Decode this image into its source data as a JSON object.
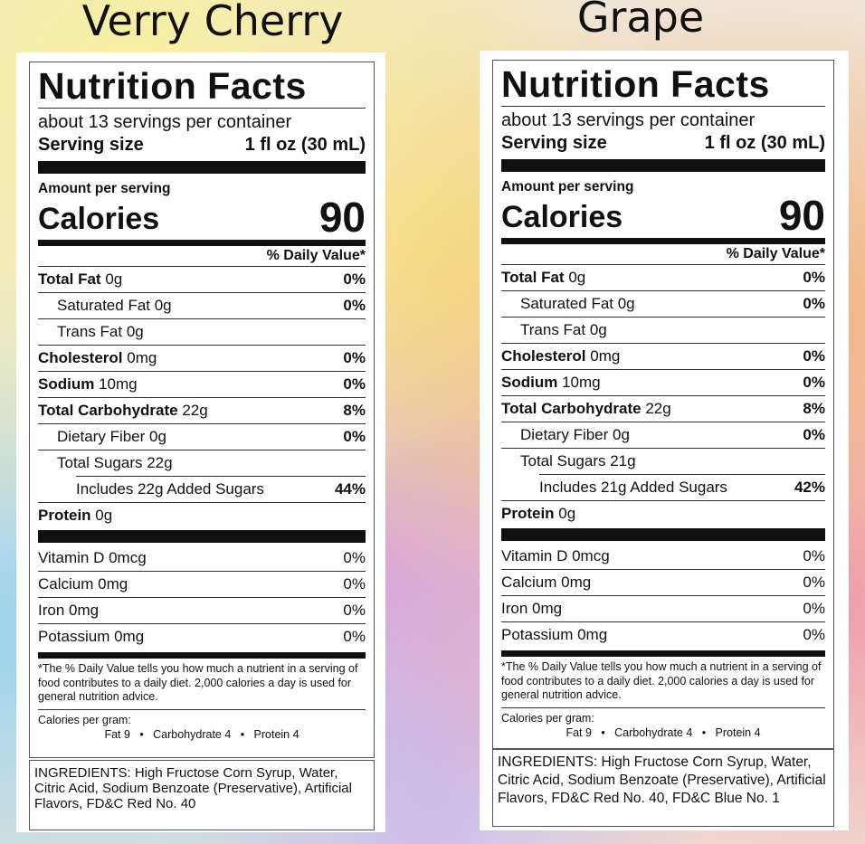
{
  "labels": [
    {
      "flavor": "Verry Cherry",
      "title": "Nutrition Facts",
      "servings": "about 13 servings per container",
      "serving_size_label": "Serving size",
      "serving_size_value": "1 fl oz (30 mL)",
      "amount_per_serving": "Amount per serving",
      "calories_label": "Calories",
      "calories_value": "90",
      "dv_header": "% Daily Value*",
      "rows": {
        "total_fat": {
          "name": "Total Fat",
          "amount": "0g",
          "dv": "0%"
        },
        "saturated_fat": {
          "name": "Saturated Fat 0g",
          "dv": "0%"
        },
        "trans_fat": {
          "name": "Trans Fat 0g"
        },
        "cholesterol": {
          "name": "Cholesterol",
          "amount": "0mg",
          "dv": "0%"
        },
        "sodium": {
          "name": "Sodium",
          "amount": "10mg",
          "dv": "0%"
        },
        "total_carb": {
          "name": "Total Carbohydrate",
          "amount": "22g",
          "dv": "8%"
        },
        "dietary_fiber": {
          "name": "Dietary Fiber 0g",
          "dv": "0%"
        },
        "total_sugars": {
          "name": "Total Sugars 22g"
        },
        "added_sugars": {
          "name": "Includes 22g Added Sugars",
          "dv": "44%"
        },
        "protein": {
          "name": "Protein",
          "amount": "0g"
        }
      },
      "vitamins": [
        {
          "name": "Vitamin D 0mcg",
          "dv": "0%"
        },
        {
          "name": "Calcium 0mg",
          "dv": "0%"
        },
        {
          "name": "Iron 0mg",
          "dv": "0%"
        },
        {
          "name": "Potassium 0mg",
          "dv": "0%"
        }
      ],
      "footnote": "*The % Daily Value tells you how much a nutrient in a serving of food contributes to a daily diet. 2,000 calories a day is used for general nutrition advice.",
      "calories_per_gram": "Calories per gram:",
      "calories_per_gram_values": "Fat 9   •   Carbohydrate 4   •   Protein 4",
      "ingredients": "INGREDIENTS: High Fructose Corn Syrup, Water, Citric Acid, Sodium Benzoate (Preservative), Artificial Flavors, FD&C Red No. 40"
    },
    {
      "flavor": "Grape",
      "title": "Nutrition Facts",
      "servings": "about 13 servings per container",
      "serving_size_label": "Serving size",
      "serving_size_value": "1 fl oz (30 mL)",
      "amount_per_serving": "Amount per serving",
      "calories_label": "Calories",
      "calories_value": "90",
      "dv_header": "% Daily Value*",
      "rows": {
        "total_fat": {
          "name": "Total Fat",
          "amount": "0g",
          "dv": "0%"
        },
        "saturated_fat": {
          "name": "Saturated Fat 0g",
          "dv": "0%"
        },
        "trans_fat": {
          "name": "Trans Fat 0g"
        },
        "cholesterol": {
          "name": "Cholesterol",
          "amount": "0mg",
          "dv": "0%"
        },
        "sodium": {
          "name": "Sodium",
          "amount": "10mg",
          "dv": "0%"
        },
        "total_carb": {
          "name": "Total Carbohydrate",
          "amount": "22g",
          "dv": "8%"
        },
        "dietary_fiber": {
          "name": "Dietary Fiber 0g",
          "dv": "0%"
        },
        "total_sugars": {
          "name": "Total Sugars 21g"
        },
        "added_sugars": {
          "name": "Includes 21g Added Sugars",
          "dv": "42%"
        },
        "protein": {
          "name": "Protein",
          "amount": "0g"
        }
      },
      "vitamins": [
        {
          "name": "Vitamin D 0mcg",
          "dv": "0%"
        },
        {
          "name": "Calcium 0mg",
          "dv": "0%"
        },
        {
          "name": "Iron 0mg",
          "dv": "0%"
        },
        {
          "name": "Potassium 0mg",
          "dv": "0%"
        }
      ],
      "footnote": "*The % Daily Value tells you how much a nutrient in a serving of food contributes to a daily diet. 2,000 calories a day is used for general nutrition advice.",
      "calories_per_gram": "Calories per gram:",
      "calories_per_gram_values": "Fat 9   •   Carbohydrate 4   •   Protein 4",
      "ingredients": "INGREDIENTS: High Fructose Corn Syrup, Water, Citric Acid, Sodium Benzoate (Preservative), Artificial Flavors, FD&C Red No. 40, FD&C Blue No. 1"
    }
  ]
}
